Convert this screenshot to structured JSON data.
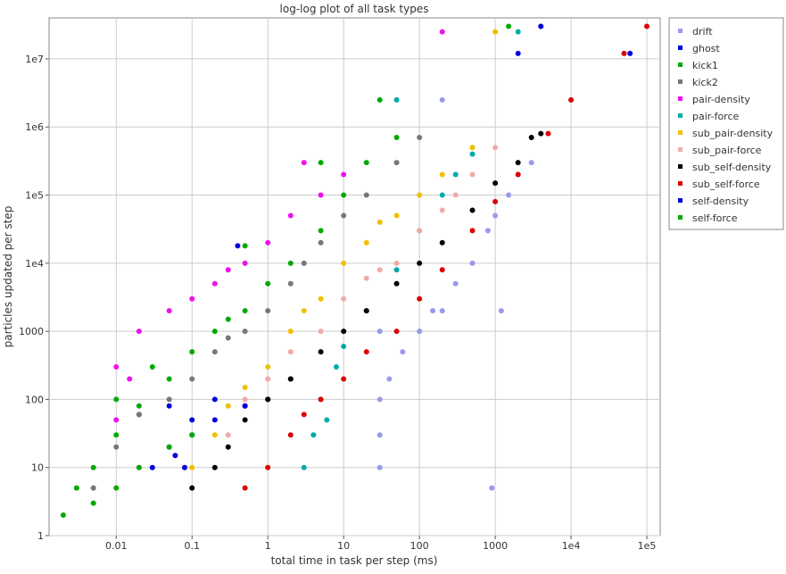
{
  "chart_data": {
    "type": "scatter",
    "title": "log-log plot of all task types",
    "xlabel": "total time in task per step (ms)",
    "ylabel": "particles updated per step",
    "xscale": "log",
    "yscale": "log",
    "xlim": [
      0.0013,
      150000
    ],
    "ylim": [
      1,
      40000000
    ],
    "grid": true,
    "legend_position": "right",
    "x_ticks": [
      {
        "value": 0.01,
        "label": "0.01"
      },
      {
        "value": 0.1,
        "label": "0.1"
      },
      {
        "value": 1,
        "label": "1"
      },
      {
        "value": 10,
        "label": "10"
      },
      {
        "value": 100,
        "label": "100"
      },
      {
        "value": 1000,
        "label": "1000"
      },
      {
        "value": 10000,
        "label": "1e4"
      },
      {
        "value": 100000,
        "label": "1e5"
      }
    ],
    "y_ticks": [
      {
        "value": 1,
        "label": "1"
      },
      {
        "value": 10,
        "label": "10"
      },
      {
        "value": 100,
        "label": "100"
      },
      {
        "value": 1000,
        "label": "1000"
      },
      {
        "value": 10000,
        "label": "1e4"
      },
      {
        "value": 100000,
        "label": "1e5"
      },
      {
        "value": 1000000,
        "label": "1e6"
      },
      {
        "value": 10000000,
        "label": "1e7"
      }
    ],
    "series": [
      {
        "name": "drift",
        "color": "#9999ee",
        "points": [
          [
            30,
            10
          ],
          [
            30,
            30
          ],
          [
            30,
            100
          ],
          [
            40,
            200
          ],
          [
            60,
            500
          ],
          [
            100,
            1000
          ],
          [
            150,
            2000
          ],
          [
            200,
            2000
          ],
          [
            300,
            5000
          ],
          [
            500,
            10000
          ],
          [
            800,
            30000
          ],
          [
            1000,
            50000
          ],
          [
            1500,
            100000
          ],
          [
            2000,
            200000
          ],
          [
            3000,
            300000
          ],
          [
            4000,
            30000000
          ],
          [
            200,
            2500000
          ],
          [
            30,
            1000
          ],
          [
            900,
            5
          ],
          [
            1200,
            2000
          ]
        ]
      },
      {
        "name": "ghost",
        "color": "#0000dd",
        "points": [
          [
            0.05,
            80
          ],
          [
            0.1,
            50
          ],
          [
            0.2,
            100
          ],
          [
            0.5,
            80
          ],
          [
            1,
            100
          ],
          [
            2,
            200
          ],
          [
            0.02,
            60
          ],
          [
            4000,
            30000000
          ],
          [
            0.4,
            18000
          ],
          [
            0.08,
            10
          ]
        ]
      },
      {
        "name": "kick1",
        "color": "#00aa00",
        "points": [
          [
            0.002,
            2
          ],
          [
            0.003,
            5
          ],
          [
            0.005,
            10
          ],
          [
            0.01,
            30
          ],
          [
            0.02,
            80
          ],
          [
            0.05,
            200
          ],
          [
            0.1,
            500
          ],
          [
            0.2,
            1000
          ],
          [
            0.5,
            2000
          ],
          [
            1,
            5000
          ],
          [
            2,
            10000
          ],
          [
            5,
            30000
          ],
          [
            10,
            100000
          ],
          [
            20,
            300000
          ],
          [
            50,
            700000
          ],
          [
            0.01,
            100
          ],
          [
            0.03,
            300
          ],
          [
            0.3,
            1500
          ]
        ]
      },
      {
        "name": "kick2",
        "color": "#777777",
        "points": [
          [
            0.005,
            5
          ],
          [
            0.01,
            20
          ],
          [
            0.02,
            60
          ],
          [
            0.05,
            100
          ],
          [
            0.1,
            200
          ],
          [
            0.2,
            500
          ],
          [
            0.5,
            1000
          ],
          [
            1,
            2000
          ],
          [
            2,
            5000
          ],
          [
            5,
            20000
          ],
          [
            10,
            50000
          ],
          [
            20,
            100000
          ],
          [
            50,
            300000
          ],
          [
            100,
            700000
          ],
          [
            0.3,
            800
          ],
          [
            3,
            10000
          ]
        ]
      },
      {
        "name": "pair-density",
        "color": "#ee11ee",
        "points": [
          [
            0.01,
            50
          ],
          [
            0.01,
            300
          ],
          [
            0.02,
            1000
          ],
          [
            0.05,
            2000
          ],
          [
            0.1,
            3000
          ],
          [
            0.2,
            5000
          ],
          [
            0.5,
            10000
          ],
          [
            1,
            20000
          ],
          [
            2,
            50000
          ],
          [
            5,
            100000
          ],
          [
            10,
            200000
          ],
          [
            3,
            300000
          ],
          [
            0.02,
            10
          ],
          [
            0.015,
            200
          ],
          [
            0.3,
            8000
          ],
          [
            200,
            25000000
          ]
        ]
      },
      {
        "name": "pair-force",
        "color": "#00aaaa",
        "points": [
          [
            3,
            10
          ],
          [
            4,
            30
          ],
          [
            5,
            100
          ],
          [
            8,
            300
          ],
          [
            10,
            600
          ],
          [
            20,
            2000
          ],
          [
            50,
            8000
          ],
          [
            100,
            30000
          ],
          [
            200,
            100000
          ],
          [
            300,
            200000
          ],
          [
            500,
            400000
          ],
          [
            6,
            50
          ],
          [
            50,
            2500000
          ],
          [
            2000,
            25000000
          ]
        ]
      },
      {
        "name": "sub_pair-density",
        "color": "#f0c000",
        "points": [
          [
            0.1,
            10
          ],
          [
            0.2,
            30
          ],
          [
            0.3,
            80
          ],
          [
            0.5,
            150
          ],
          [
            1,
            300
          ],
          [
            2,
            1000
          ],
          [
            5,
            3000
          ],
          [
            10,
            10000
          ],
          [
            20,
            20000
          ],
          [
            50,
            50000
          ],
          [
            100,
            100000
          ],
          [
            200,
            200000
          ],
          [
            500,
            500000
          ],
          [
            3,
            2000
          ],
          [
            30,
            40000
          ],
          [
            1000,
            25000000
          ]
        ]
      },
      {
        "name": "sub_pair-force",
        "color": "#f0aaaa",
        "points": [
          [
            0.3,
            30
          ],
          [
            0.5,
            100
          ],
          [
            1,
            200
          ],
          [
            2,
            500
          ],
          [
            5,
            1000
          ],
          [
            10,
            3000
          ],
          [
            20,
            6000
          ],
          [
            50,
            10000
          ],
          [
            100,
            30000
          ],
          [
            200,
            60000
          ],
          [
            500,
            200000
          ],
          [
            1000,
            500000
          ],
          [
            30,
            8000
          ],
          [
            300,
            100000
          ]
        ]
      },
      {
        "name": "sub_self-density",
        "color": "#000000",
        "points": [
          [
            0.1,
            5
          ],
          [
            0.2,
            10
          ],
          [
            0.3,
            20
          ],
          [
            0.5,
            50
          ],
          [
            1,
            100
          ],
          [
            2,
            200
          ],
          [
            5,
            500
          ],
          [
            10,
            1000
          ],
          [
            20,
            2000
          ],
          [
            50,
            5000
          ],
          [
            100,
            10000
          ],
          [
            200,
            20000
          ],
          [
            500,
            60000
          ],
          [
            1000,
            150000
          ],
          [
            2000,
            300000
          ],
          [
            3000,
            700000
          ],
          [
            4000,
            800000
          ]
        ]
      },
      {
        "name": "sub_self-force",
        "color": "#dd0000",
        "points": [
          [
            0.5,
            5
          ],
          [
            1,
            10
          ],
          [
            2,
            30
          ],
          [
            3,
            60
          ],
          [
            5,
            100
          ],
          [
            10,
            200
          ],
          [
            20,
            500
          ],
          [
            50,
            1000
          ],
          [
            100,
            3000
          ],
          [
            200,
            8000
          ],
          [
            500,
            30000
          ],
          [
            1000,
            80000
          ],
          [
            2000,
            200000
          ],
          [
            5000,
            800000
          ],
          [
            10000,
            2500000
          ],
          [
            50000,
            12000000
          ],
          [
            100000,
            30000000
          ]
        ]
      },
      {
        "name": "self-density",
        "color": "#0000dd",
        "points": [
          [
            0.03,
            10
          ],
          [
            0.05,
            20
          ],
          [
            0.1,
            30
          ],
          [
            0.2,
            50
          ],
          [
            0.5,
            80
          ],
          [
            0.06,
            15
          ],
          [
            2000,
            12000000
          ],
          [
            60000,
            12000000
          ]
        ]
      },
      {
        "name": "self-force",
        "color": "#00aa00",
        "points": [
          [
            0.005,
            3
          ],
          [
            0.01,
            5
          ],
          [
            0.02,
            10
          ],
          [
            0.05,
            20
          ],
          [
            0.1,
            30
          ],
          [
            0.5,
            18000
          ],
          [
            5,
            300000
          ],
          [
            30,
            2500000
          ],
          [
            1500,
            30000000
          ]
        ]
      }
    ]
  }
}
